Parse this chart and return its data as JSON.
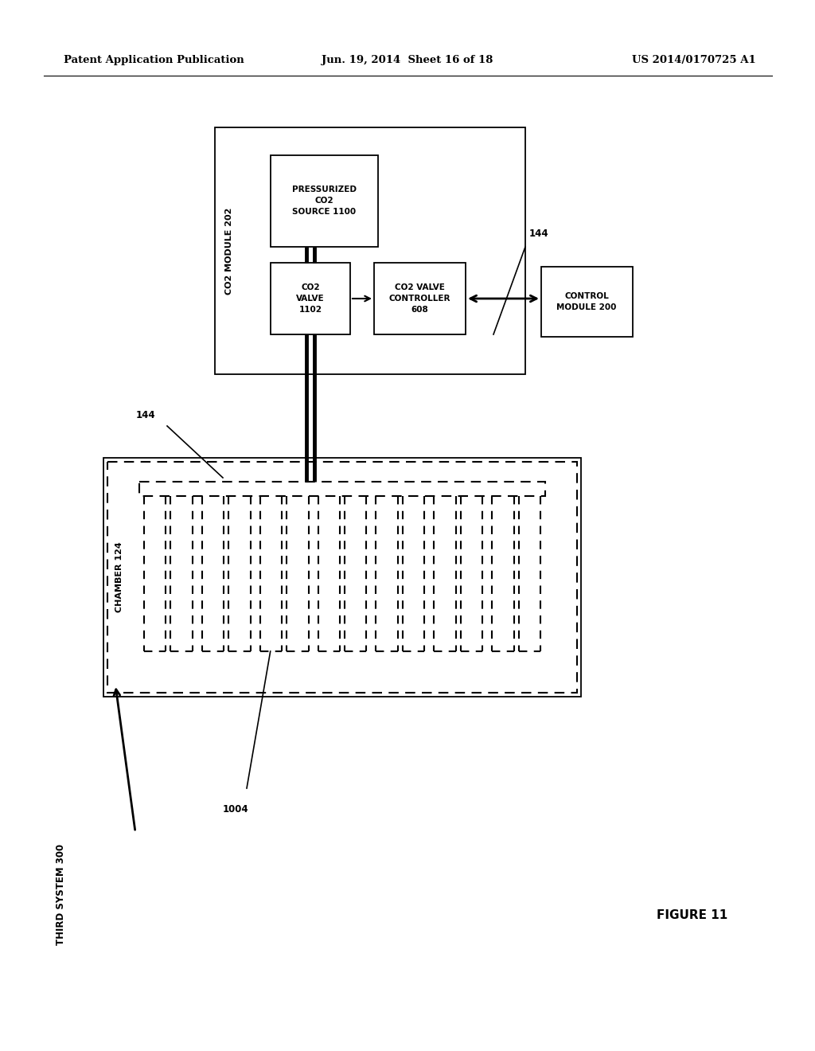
{
  "bg_color": "#ffffff",
  "header_left": "Patent Application Publication",
  "header_center": "Jun. 19, 2014  Sheet 16 of 18",
  "header_right": "US 2014/0170725 A1",
  "figure_label": "FIGURE 11",
  "third_system_label": "THIRD SYSTEM 300",
  "pipe_label": "1004",
  "ref_144": "144",
  "co2_module_label": "CO2 MODULE 202",
  "pressurized_label": "PRESSURIZED\nCO2\nSOURCE 1100",
  "co2_valve_label": "CO2\nVALVE\n1102",
  "co2_valve_ctrl_label": "CO2 VALVE\nCONTROLLER\n608",
  "control_module_label": "CONTROL\nMODULE 200",
  "chamber_label": "CHAMBER 124"
}
